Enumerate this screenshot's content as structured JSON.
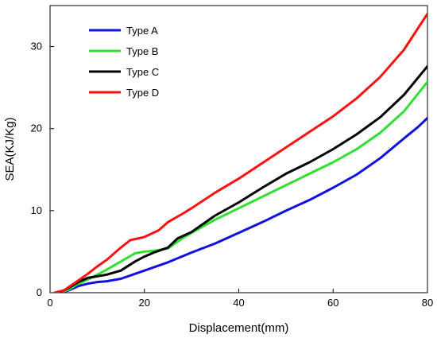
{
  "chart_data": {
    "type": "line",
    "title": "",
    "xlabel": "Displacement(mm)",
    "ylabel": "SEA(KJ/Kg)",
    "xlim": [
      0,
      80
    ],
    "ylim": [
      0,
      35
    ],
    "x_ticks": [
      "0",
      "20",
      "40",
      "60",
      "80"
    ],
    "y_ticks": [
      "0",
      "10",
      "20",
      "30"
    ],
    "grid": false,
    "legend_position": "top-left",
    "series": [
      {
        "name": "Type A",
        "color": "#1010e0",
        "x": [
          2,
          4,
          6,
          8,
          10,
          12,
          15,
          18,
          20,
          25,
          30,
          35,
          40,
          45,
          50,
          55,
          60,
          65,
          70,
          75,
          78,
          80
        ],
        "y": [
          0,
          0.3,
          0.8,
          1.1,
          1.3,
          1.4,
          1.7,
          2.3,
          2.7,
          3.7,
          4.9,
          6.0,
          7.3,
          8.6,
          10.0,
          11.3,
          12.8,
          14.4,
          16.4,
          18.8,
          20.2,
          21.3
        ]
      },
      {
        "name": "Type B",
        "color": "#30e030",
        "x": [
          2,
          4,
          6,
          8,
          10,
          12,
          15,
          18,
          20,
          22,
          25,
          28,
          30,
          35,
          40,
          45,
          50,
          55,
          60,
          65,
          70,
          75,
          80
        ],
        "y": [
          0,
          0.4,
          1.1,
          1.6,
          2.2,
          2.8,
          3.8,
          4.8,
          5.0,
          5.1,
          5.4,
          6.6,
          7.3,
          8.9,
          10.3,
          11.7,
          13.1,
          14.5,
          15.9,
          17.5,
          19.5,
          22.1,
          25.7
        ]
      },
      {
        "name": "Type C",
        "color": "#000000",
        "x": [
          2,
          4,
          6,
          8,
          10,
          12,
          15,
          18,
          20,
          22,
          25,
          27,
          30,
          35,
          40,
          45,
          50,
          55,
          60,
          65,
          70,
          75,
          80
        ],
        "y": [
          0,
          0.6,
          1.3,
          1.8,
          2.0,
          2.2,
          2.7,
          3.8,
          4.4,
          4.9,
          5.5,
          6.6,
          7.4,
          9.4,
          11.0,
          12.8,
          14.5,
          15.9,
          17.5,
          19.3,
          21.4,
          24.1,
          27.6
        ]
      },
      {
        "name": "Type D",
        "color": "#ff1010",
        "x": [
          1,
          3,
          5,
          8,
          10,
          12,
          15,
          17,
          20,
          23,
          25,
          28,
          30,
          35,
          40,
          45,
          50,
          55,
          60,
          65,
          70,
          75,
          80
        ],
        "y": [
          0,
          0.3,
          1.1,
          2.3,
          3.2,
          4.0,
          5.5,
          6.4,
          6.8,
          7.6,
          8.6,
          9.6,
          10.3,
          12.2,
          13.9,
          15.8,
          17.7,
          19.6,
          21.5,
          23.7,
          26.3,
          29.6,
          34.0
        ]
      }
    ]
  }
}
